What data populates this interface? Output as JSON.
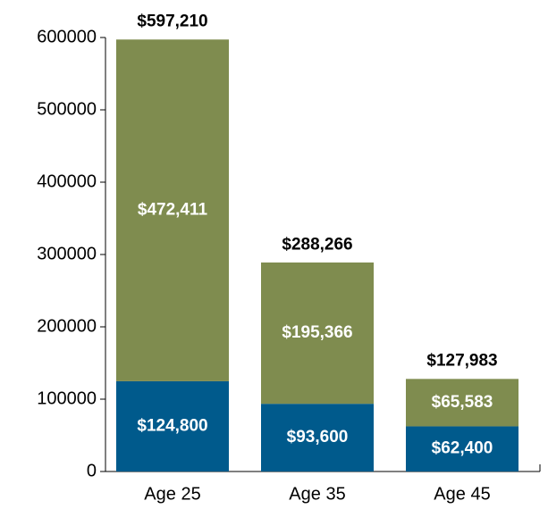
{
  "chart_data": {
    "type": "stacked-bar",
    "categories": [
      "Age 25",
      "Age 35",
      "Age 45"
    ],
    "series": [
      {
        "color": "#005a8c",
        "values": [
          124800,
          93600,
          62400
        ],
        "value_labels": [
          "$124,800",
          "$93,600",
          "$62,400"
        ]
      },
      {
        "color": "#7f8c4f",
        "values": [
          472411,
          195366,
          65583
        ],
        "value_labels": [
          "$472,411",
          "$195,366",
          "$65,583"
        ]
      }
    ],
    "totals": [
      597210,
      288266,
      127983
    ],
    "total_labels": [
      "$597,210",
      "$288,266",
      "$127,983"
    ],
    "ylim": [
      0,
      600000
    ],
    "yticks": [
      0,
      100000,
      200000,
      300000,
      400000,
      500000,
      600000
    ]
  }
}
